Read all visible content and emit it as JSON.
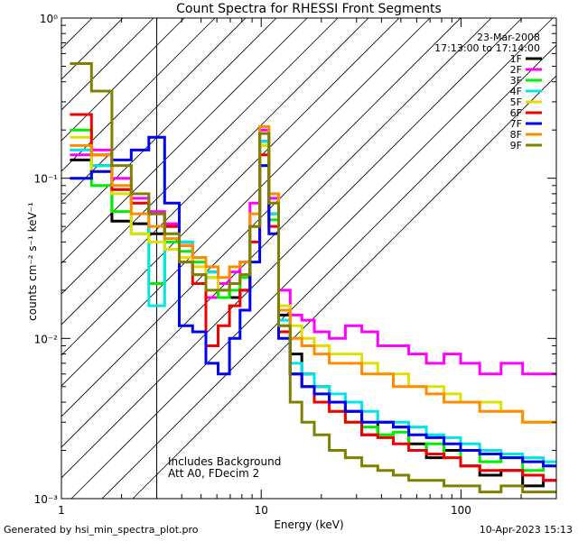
{
  "chart_data": {
    "type": "line",
    "title": "Count Spectra for RHESSI Front Segments",
    "xlabel": "Energy (keV)",
    "ylabel": "counts cm⁻² s⁻¹ keV⁻¹",
    "xscale": "log",
    "yscale": "log",
    "xlim": [
      1,
      300
    ],
    "ylim": [
      0.001,
      1
    ],
    "x_ticks": [
      {
        "value": 1,
        "label": "1"
      },
      {
        "value": 10,
        "label": "10"
      },
      {
        "value": 100,
        "label": "100"
      }
    ],
    "y_ticks": [
      {
        "value": 1,
        "label": "10⁰"
      },
      {
        "value": 0.1,
        "label": "10⁻¹"
      },
      {
        "value": 0.01,
        "label": "10⁻²"
      },
      {
        "value": 0.001,
        "label": "10⁻³"
      }
    ],
    "hatched_region_keV": [
      1,
      3
    ],
    "date": "23-Mar-2008",
    "time_range": "17:13:00 to 17:14:00",
    "annotations": [
      "Includes Background",
      "Att A0, FDecim 2"
    ],
    "series": [
      {
        "name": "1F",
        "color": "#000000",
        "x": [
          1.25,
          1.6,
          2.0,
          2.5,
          3.0,
          3.6,
          4.2,
          4.9,
          5.7,
          6.5,
          7.4,
          8.3,
          9.3,
          10.4,
          11.5,
          13,
          15,
          17,
          20,
          24,
          29,
          35,
          42,
          50,
          60,
          75,
          90,
          110,
          140,
          180,
          230,
          290
        ],
        "y": [
          0.13,
          0.12,
          0.054,
          0.052,
          0.045,
          0.05,
          0.038,
          0.032,
          0.026,
          0.022,
          0.018,
          0.02,
          0.05,
          0.17,
          0.06,
          0.014,
          0.008,
          0.006,
          0.005,
          0.004,
          0.0035,
          0.0025,
          0.003,
          0.0028,
          0.0022,
          0.0018,
          0.002,
          0.0016,
          0.0014,
          0.0015,
          0.0012,
          0.0013
        ]
      },
      {
        "name": "2F",
        "color": "#ff00ff",
        "x": [
          1.25,
          1.6,
          2.0,
          2.5,
          3.0,
          3.6,
          4.2,
          4.9,
          5.7,
          6.5,
          7.4,
          8.3,
          9.3,
          10.4,
          11.5,
          13,
          15,
          17,
          20,
          24,
          29,
          35,
          42,
          50,
          60,
          75,
          90,
          110,
          140,
          180,
          230,
          290
        ],
        "y": [
          0.14,
          0.15,
          0.1,
          0.075,
          0.062,
          0.052,
          0.04,
          0.025,
          0.018,
          0.022,
          0.026,
          0.03,
          0.07,
          0.2,
          0.075,
          0.02,
          0.014,
          0.013,
          0.011,
          0.01,
          0.012,
          0.011,
          0.009,
          0.009,
          0.008,
          0.007,
          0.008,
          0.007,
          0.006,
          0.007,
          0.006,
          0.006
        ]
      },
      {
        "name": "3F",
        "color": "#00ee00",
        "x": [
          1.25,
          1.6,
          2.0,
          2.5,
          3.0,
          3.6,
          4.2,
          4.9,
          5.7,
          6.5,
          7.4,
          8.3,
          9.3,
          10.4,
          11.5,
          13,
          15,
          17,
          20,
          24,
          29,
          35,
          42,
          50,
          60,
          75,
          90,
          110,
          140,
          180,
          230,
          290
        ],
        "y": [
          0.2,
          0.09,
          0.062,
          0.045,
          0.022,
          0.04,
          0.035,
          0.03,
          0.024,
          0.018,
          0.02,
          0.024,
          0.05,
          0.16,
          0.055,
          0.012,
          0.006,
          0.005,
          0.004,
          0.0035,
          0.003,
          0.0028,
          0.0025,
          0.0026,
          0.002,
          0.0022,
          0.0018,
          0.002,
          0.0017,
          0.0018,
          0.0015,
          0.0016
        ]
      },
      {
        "name": "4F",
        "color": "#00e5e5",
        "x": [
          1.25,
          1.6,
          2.0,
          2.5,
          3.0,
          3.6,
          4.2,
          4.9,
          5.7,
          6.5,
          7.4,
          8.3,
          9.3,
          10.4,
          11.5,
          13,
          15,
          17,
          20,
          24,
          29,
          35,
          42,
          50,
          60,
          75,
          90,
          110,
          140,
          180,
          230,
          290
        ],
        "y": [
          0.15,
          0.12,
          0.085,
          0.07,
          0.016,
          0.045,
          0.04,
          0.032,
          0.026,
          0.02,
          0.022,
          0.025,
          0.05,
          0.17,
          0.06,
          0.013,
          0.007,
          0.006,
          0.005,
          0.0045,
          0.004,
          0.0035,
          0.003,
          0.003,
          0.0028,
          0.0025,
          0.0024,
          0.0022,
          0.002,
          0.0019,
          0.0018,
          0.0017
        ]
      },
      {
        "name": "5F",
        "color": "#e0e000",
        "x": [
          1.25,
          1.6,
          2.0,
          2.5,
          3.0,
          3.6,
          4.2,
          4.9,
          5.7,
          6.5,
          7.4,
          8.3,
          9.3,
          10.4,
          11.5,
          13,
          15,
          17,
          20,
          24,
          29,
          35,
          42,
          50,
          60,
          75,
          90,
          110,
          140,
          180,
          230,
          290
        ],
        "y": [
          0.18,
          0.11,
          0.08,
          0.045,
          0.04,
          0.036,
          0.032,
          0.028,
          0.024,
          0.02,
          0.022,
          0.025,
          0.05,
          0.16,
          0.07,
          0.016,
          0.012,
          0.01,
          0.009,
          0.008,
          0.008,
          0.007,
          0.006,
          0.006,
          0.005,
          0.005,
          0.0045,
          0.004,
          0.004,
          0.0035,
          0.003,
          0.003
        ]
      },
      {
        "name": "6F",
        "color": "#ee0000",
        "x": [
          1.25,
          1.6,
          2.0,
          2.5,
          3.0,
          3.6,
          4.2,
          4.9,
          5.7,
          6.5,
          7.4,
          8.3,
          9.3,
          10.4,
          11.5,
          13,
          15,
          17,
          20,
          24,
          29,
          35,
          42,
          50,
          60,
          75,
          90,
          110,
          140,
          180,
          230,
          290
        ],
        "y": [
          0.25,
          0.14,
          0.085,
          0.07,
          0.06,
          0.05,
          0.03,
          0.022,
          0.009,
          0.012,
          0.016,
          0.02,
          0.04,
          0.14,
          0.05,
          0.011,
          0.006,
          0.005,
          0.004,
          0.0035,
          0.003,
          0.0025,
          0.0024,
          0.0022,
          0.002,
          0.0019,
          0.0018,
          0.0016,
          0.0015,
          0.0015,
          0.0014,
          0.0013
        ]
      },
      {
        "name": "7F",
        "color": "#0000ee",
        "x": [
          1.25,
          1.6,
          2.0,
          2.5,
          3.0,
          3.6,
          4.2,
          4.9,
          5.7,
          6.5,
          7.4,
          8.3,
          9.3,
          10.4,
          11.5,
          13,
          15,
          17,
          20,
          24,
          29,
          35,
          42,
          50,
          60,
          75,
          90,
          110,
          140,
          180,
          230,
          290
        ],
        "y": [
          0.1,
          0.11,
          0.13,
          0.15,
          0.18,
          0.07,
          0.012,
          0.011,
          0.007,
          0.006,
          0.01,
          0.015,
          0.03,
          0.12,
          0.045,
          0.01,
          0.006,
          0.005,
          0.0045,
          0.004,
          0.0035,
          0.003,
          0.003,
          0.0028,
          0.0025,
          0.0024,
          0.0022,
          0.002,
          0.0019,
          0.0018,
          0.0017,
          0.0016
        ]
      },
      {
        "name": "8F",
        "color": "#ff8c00",
        "x": [
          1.25,
          1.6,
          2.0,
          2.5,
          3.0,
          3.6,
          4.2,
          4.9,
          5.7,
          6.5,
          7.4,
          8.3,
          9.3,
          10.4,
          11.5,
          13,
          15,
          17,
          20,
          24,
          29,
          35,
          42,
          50,
          60,
          75,
          90,
          110,
          140,
          180,
          230,
          290
        ],
        "y": [
          0.16,
          0.14,
          0.09,
          0.06,
          0.05,
          0.042,
          0.038,
          0.032,
          0.028,
          0.024,
          0.028,
          0.03,
          0.06,
          0.21,
          0.08,
          0.015,
          0.01,
          0.009,
          0.008,
          0.007,
          0.007,
          0.006,
          0.006,
          0.005,
          0.005,
          0.0045,
          0.004,
          0.004,
          0.0035,
          0.0035,
          0.003,
          0.003
        ]
      },
      {
        "name": "9F",
        "color": "#808000",
        "x": [
          1.25,
          1.6,
          2.0,
          2.5,
          3.0,
          3.6,
          4.2,
          4.9,
          5.7,
          6.5,
          7.4,
          8.3,
          9.3,
          10.4,
          11.5,
          13,
          15,
          17,
          20,
          24,
          29,
          35,
          42,
          50,
          60,
          75,
          90,
          110,
          140,
          180,
          230,
          290
        ],
        "y": [
          0.52,
          0.35,
          0.12,
          0.08,
          0.06,
          0.045,
          0.03,
          0.025,
          0.02,
          0.02,
          0.022,
          0.025,
          0.05,
          0.19,
          0.07,
          0.012,
          0.004,
          0.003,
          0.0025,
          0.002,
          0.0018,
          0.0016,
          0.0015,
          0.0014,
          0.0013,
          0.0013,
          0.0012,
          0.0012,
          0.0011,
          0.0012,
          0.0011,
          0.0011
        ]
      }
    ]
  },
  "footer": {
    "left": "Generated by hsi_min_spectra_plot.pro",
    "right": "10-Apr-2023 15:13"
  }
}
